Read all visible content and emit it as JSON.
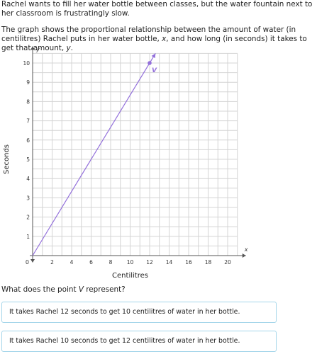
{
  "intro": {
    "p1": "Rachel wants to fill her water bottle between classes, but the water fountain next to her classroom is frustratingly slow.",
    "p2_a": "The graph shows the proportional relationship between the amount of water (in centilitres) Rachel puts in her water bottle, ",
    "p2_x": "x",
    "p2_b": ", and how long (in seconds) it takes to get that amount, ",
    "p2_y": "y",
    "p2_c": "."
  },
  "chart_data": {
    "type": "line",
    "xlabel": "Centilitres",
    "ylabel": "Seconds",
    "x_axis_var": "x",
    "y_axis_var": "y",
    "origin_label": "0",
    "xlim": [
      0,
      21
    ],
    "ylim": [
      0,
      10.5
    ],
    "x_ticks": [
      2,
      4,
      6,
      8,
      10,
      12,
      14,
      16,
      18,
      20
    ],
    "y_ticks": [
      1,
      2,
      3,
      4,
      5,
      6,
      7,
      8,
      9,
      10
    ],
    "grid": true,
    "series": [
      {
        "x": [
          0,
          12.6
        ],
        "y": [
          0,
          10.5
        ],
        "color": "#9370db"
      }
    ],
    "points": [
      {
        "label": "V",
        "x": 12,
        "y": 10,
        "color": "#9370db"
      }
    ]
  },
  "question": {
    "before": "What does the point ",
    "var": "V",
    "after": " represent?"
  },
  "choices": [
    "It takes Rachel 12 seconds to get 10 centilitres of water in her bottle.",
    "It takes Rachel 10 seconds to get 12 centilitres of water in her bottle."
  ]
}
